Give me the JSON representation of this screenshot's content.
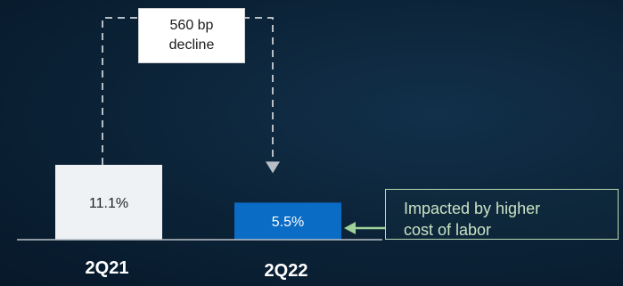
{
  "chart_data": {
    "type": "bar",
    "categories": [
      "2Q21",
      "2Q22"
    ],
    "values": [
      11.1,
      5.5
    ],
    "value_labels": [
      "11.1%",
      "5.5%"
    ],
    "ylim": [
      0,
      11.1
    ],
    "title": "",
    "xlabel": "",
    "ylabel": ""
  },
  "annotations": {
    "change_label": "560 bp\ndecline",
    "note": "Impacted by higher\ncost of labor"
  },
  "colors": {
    "bar_2q21": "#eef2f5",
    "bar_2q22": "#0a6cc4",
    "connector": "#b7bec6",
    "note_border": "#b9dbb3",
    "note_arrow": "#9fd29a"
  }
}
